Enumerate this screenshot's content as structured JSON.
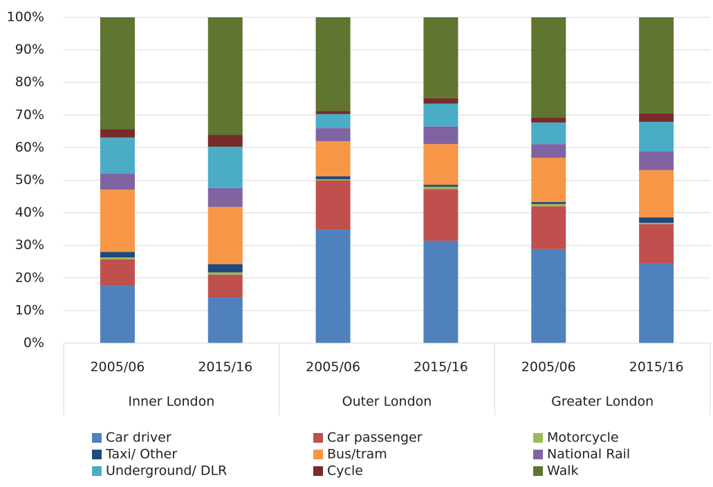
{
  "chart_data": {
    "type": "stacked_bar",
    "categories": [
      "2005/06",
      "2015/16",
      "2005/06",
      "2015/16",
      "2005/06",
      "2015/16"
    ],
    "groups": [
      "Inner London",
      "Outer London",
      "Greater London"
    ],
    "series": [
      {
        "name": "Car driver",
        "color": "#4f81bd",
        "values": [
          17.6,
          14.0,
          34.8,
          31.4,
          28.9,
          24.4
        ]
      },
      {
        "name": "Car passenger",
        "color": "#c0504d",
        "values": [
          8.1,
          7.0,
          15.1,
          15.9,
          13.1,
          12.1
        ]
      },
      {
        "name": "Motorcycle",
        "color": "#9bbb59",
        "values": [
          0.6,
          0.7,
          0.4,
          0.7,
          0.7,
          0.4
        ]
      },
      {
        "name": "Taxi/ Other",
        "color": "#1f497d",
        "values": [
          1.7,
          2.5,
          0.9,
          0.6,
          0.6,
          1.7
        ]
      },
      {
        "name": "Bus/tram",
        "color": "#f79646",
        "values": [
          19.1,
          17.6,
          10.8,
          12.5,
          13.6,
          14.5
        ]
      },
      {
        "name": "National Rail",
        "color": "#8064a2",
        "values": [
          4.9,
          5.8,
          4.0,
          5.4,
          4.2,
          5.7
        ]
      },
      {
        "name": "Underground/ DLR",
        "color": "#4bacc6",
        "values": [
          11.1,
          12.7,
          4.3,
          7.0,
          6.6,
          9.1
        ]
      },
      {
        "name": "Cycle",
        "color": "#772c2a",
        "values": [
          2.5,
          3.6,
          1.0,
          1.7,
          1.5,
          2.6
        ]
      },
      {
        "name": "Walk",
        "color": "#5f7530",
        "values": [
          34.4,
          36.1,
          28.7,
          24.8,
          30.8,
          29.5
        ]
      }
    ],
    "ylim": [
      0,
      100
    ],
    "yticks": [
      {
        "value": 0,
        "label": "0%"
      },
      {
        "value": 10,
        "label": "10%"
      },
      {
        "value": 20,
        "label": "20%"
      },
      {
        "value": 30,
        "label": "30%"
      },
      {
        "value": 40,
        "label": "40%"
      },
      {
        "value": 50,
        "label": "50%"
      },
      {
        "value": 60,
        "label": "60%"
      },
      {
        "value": 70,
        "label": "70%"
      },
      {
        "value": 80,
        "label": "80%"
      },
      {
        "value": 90,
        "label": "90%"
      },
      {
        "value": 100,
        "label": "100%"
      }
    ],
    "grid": true
  }
}
